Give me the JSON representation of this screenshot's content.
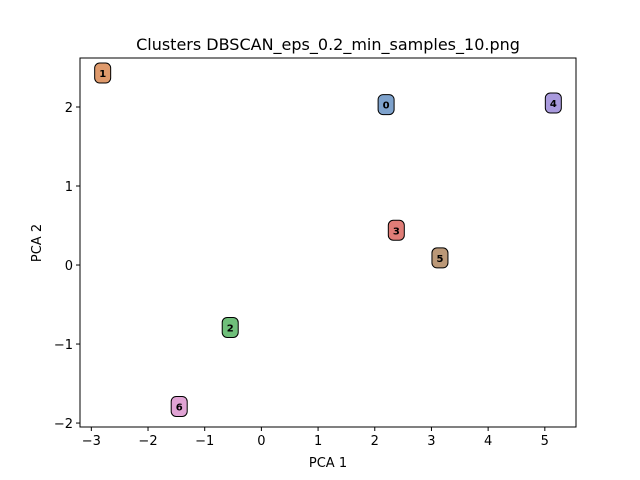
{
  "chart_data": {
    "type": "scatter",
    "title": "Clusters DBSCAN_eps_0.2_min_samples_10.png",
    "xlabel": "PCA 1",
    "ylabel": "PCA 2",
    "xlim": [
      -3.2,
      5.55
    ],
    "ylim": [
      -2.05,
      2.62
    ],
    "xticks": [
      -3,
      -2,
      -1,
      0,
      1,
      2,
      3,
      4,
      5
    ],
    "xtick_labels": [
      "−3",
      "−2",
      "−1",
      "0",
      "1",
      "2",
      "3",
      "4",
      "5"
    ],
    "yticks": [
      -2,
      -1,
      0,
      1,
      2
    ],
    "ytick_labels": [
      "−2",
      "−1",
      "0",
      "1",
      "2"
    ],
    "grid": false,
    "points": [
      {
        "label": "0",
        "x": 2.2,
        "y": 2.03,
        "color": "#7ea2cc"
      },
      {
        "label": "1",
        "x": -2.8,
        "y": 2.43,
        "color": "#df9a6c"
      },
      {
        "label": "2",
        "x": -0.55,
        "y": -0.79,
        "color": "#6fbf7a"
      },
      {
        "label": "3",
        "x": 2.38,
        "y": 0.44,
        "color": "#e07d77"
      },
      {
        "label": "4",
        "x": 5.15,
        "y": 2.05,
        "color": "#a99add"
      },
      {
        "label": "5",
        "x": 3.15,
        "y": 0.09,
        "color": "#bb9877"
      },
      {
        "label": "6",
        "x": -1.45,
        "y": -1.79,
        "color": "#e0a3d4"
      }
    ]
  }
}
